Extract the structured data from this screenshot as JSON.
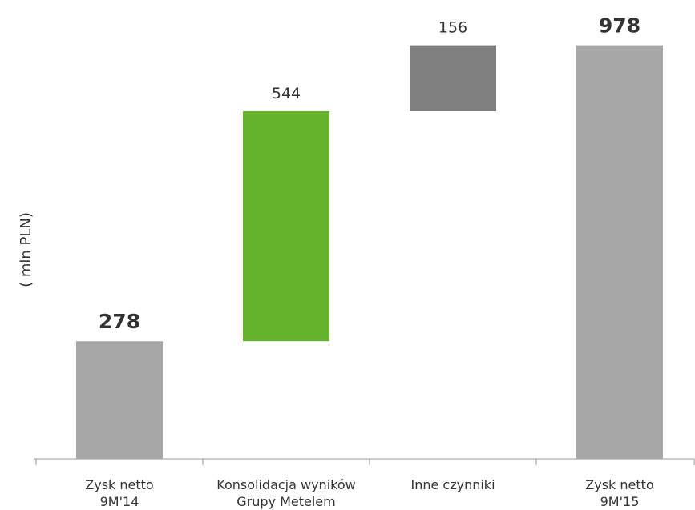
{
  "chart_data": {
    "type": "waterfall",
    "y_label": "( mln PLN)",
    "categories": [
      [
        "Zysk netto",
        "9M'14"
      ],
      [
        "Konsolidacja wyników",
        "Grupy Metelem"
      ],
      [
        "Inne czynniki"
      ],
      [
        "Zysk netto",
        "9M'15"
      ]
    ],
    "values": [
      278,
      544,
      156,
      978
    ],
    "measures": [
      "total",
      "relative",
      "relative",
      "total"
    ],
    "colors": [
      "#a6a6a6",
      "#66b32e",
      "#808080",
      "#a6a6a6"
    ],
    "ylim": [
      0,
      1000
    ]
  }
}
